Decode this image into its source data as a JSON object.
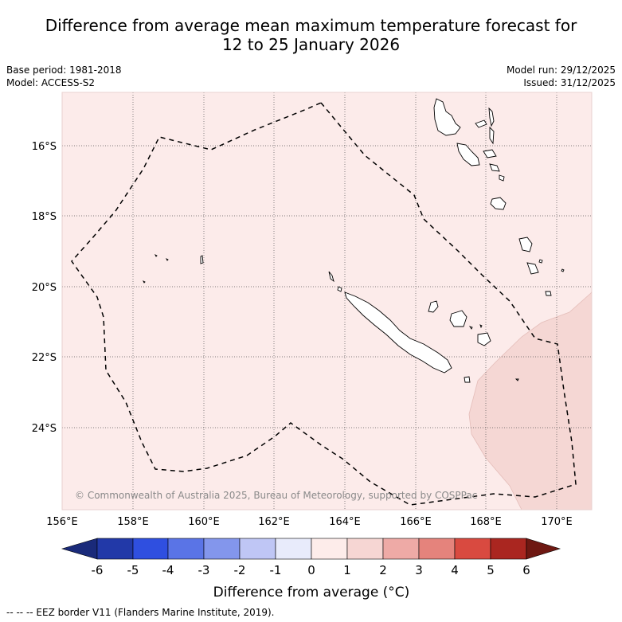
{
  "title_line1": "Difference from average mean maximum temperature forecast for",
  "title_line2": "12 to 25 January 2026",
  "base_period": "Base period: 1981-2018",
  "model": "Model: ACCESS-S2",
  "model_run": "Model run: 29/12/2025",
  "issued": "Issued: 31/12/2025",
  "lat_labels": [
    "16°S",
    "18°S",
    "20°S",
    "22°S",
    "24°S"
  ],
  "lon_labels": [
    "156°E",
    "158°E",
    "160°E",
    "162°E",
    "164°E",
    "166°E",
    "168°E",
    "170°E"
  ],
  "copyright": "© Commonwealth of Australia 2025, Bureau of Meteorology, supported by COSPPac",
  "colorbar": {
    "ticks": [
      "-6",
      "-5",
      "-4",
      "-3",
      "-2",
      "-1",
      "0",
      "1",
      "2",
      "3",
      "4",
      "5",
      "6"
    ],
    "label": "Difference from average (°C)",
    "colors": [
      "#1a2a7a",
      "#2239a8",
      "#2f4fe0",
      "#5a74e6",
      "#8396ec",
      "#bfc6f5",
      "#e8ebfb",
      "#fdecea",
      "#f6d6d3",
      "#eeaaa6",
      "#e5837c",
      "#d94a40",
      "#aa2620",
      "#6e1812"
    ],
    "ocean_fill": "#fcebea",
    "warm_fill": "#f5d7d4"
  },
  "footer": "-- -- -- EEZ border V11 (Flanders Marine Institute, 2019)."
}
